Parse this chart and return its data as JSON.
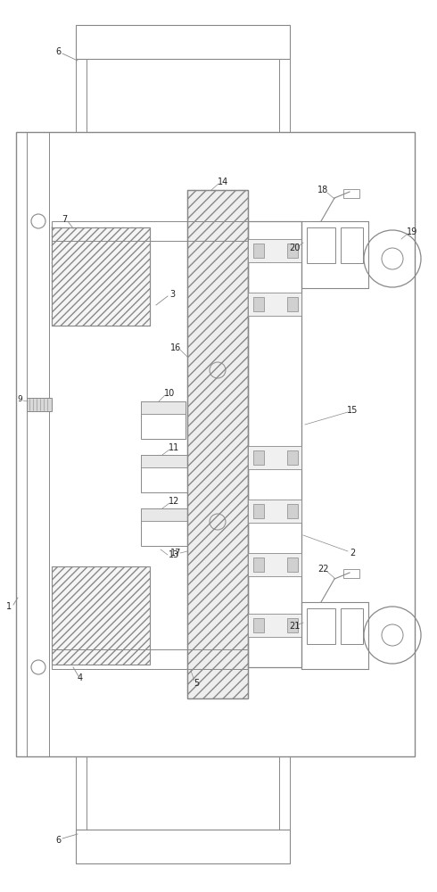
{
  "bg_color": "#ffffff",
  "lc": "#aaaaaa",
  "dc": "#888888",
  "blk": "#444444",
  "fig_width": 4.9,
  "fig_height": 10.0,
  "dpi": 100
}
